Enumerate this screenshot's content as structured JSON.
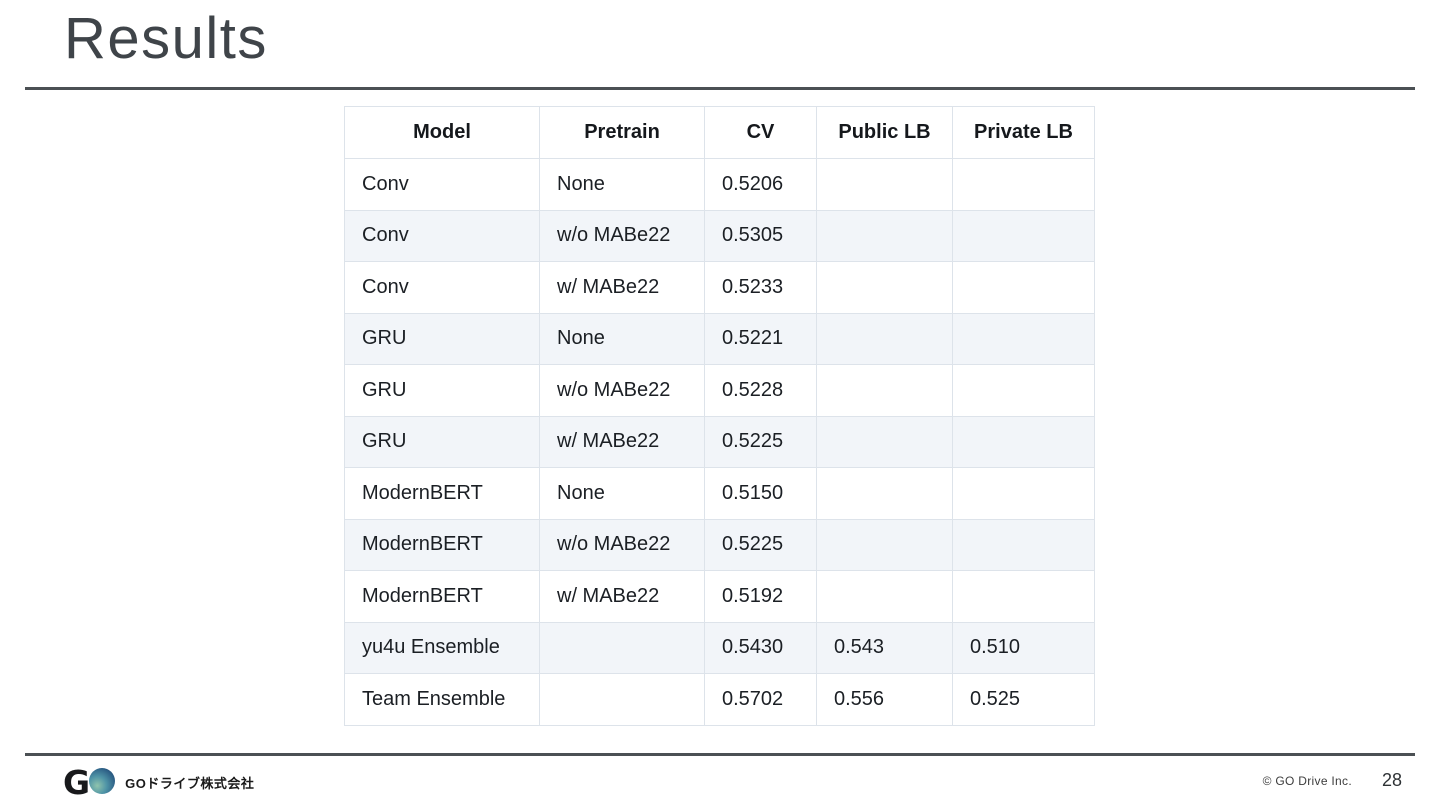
{
  "slide": {
    "title": "Results",
    "page_number": "28",
    "copyright": "© GO Drive Inc.",
    "footer_company": "GOドライブ株式会社",
    "logo_letter": "G"
  },
  "table": {
    "columns": [
      "Model",
      "Pretrain",
      "CV",
      "Public LB",
      "Private LB"
    ],
    "rows": [
      [
        "Conv",
        "None",
        "0.5206",
        "",
        ""
      ],
      [
        "Conv",
        "w/o MABe22",
        "0.5305",
        "",
        ""
      ],
      [
        "Conv",
        "w/ MABe22",
        "0.5233",
        "",
        ""
      ],
      [
        "GRU",
        "None",
        "0.5221",
        "",
        ""
      ],
      [
        "GRU",
        "w/o MABe22",
        "0.5228",
        "",
        ""
      ],
      [
        "GRU",
        "w/ MABe22",
        "0.5225",
        "",
        ""
      ],
      [
        "ModernBERT",
        "None",
        "0.5150",
        "",
        ""
      ],
      [
        "ModernBERT",
        "w/o MABe22",
        "0.5225",
        "",
        ""
      ],
      [
        "ModernBERT",
        "w/ MABe22",
        "0.5192",
        "",
        ""
      ],
      [
        "yu4u Ensemble",
        "",
        "0.5430",
        "0.543",
        "0.510"
      ],
      [
        "Team Ensemble",
        "",
        "0.5702",
        "0.556",
        "0.525"
      ]
    ]
  },
  "colors": {
    "stripe": "#f2f5f9",
    "table_border": "#dde3ea",
    "divider": "#4b5054",
    "title_text": "#3f4449",
    "cell_text": "#1b1f24",
    "header_text": "#15181c",
    "logo_dark": "#1b3e63",
    "logo_teal": "#4e93a6",
    "logo_light": "#8fc4ad"
  }
}
